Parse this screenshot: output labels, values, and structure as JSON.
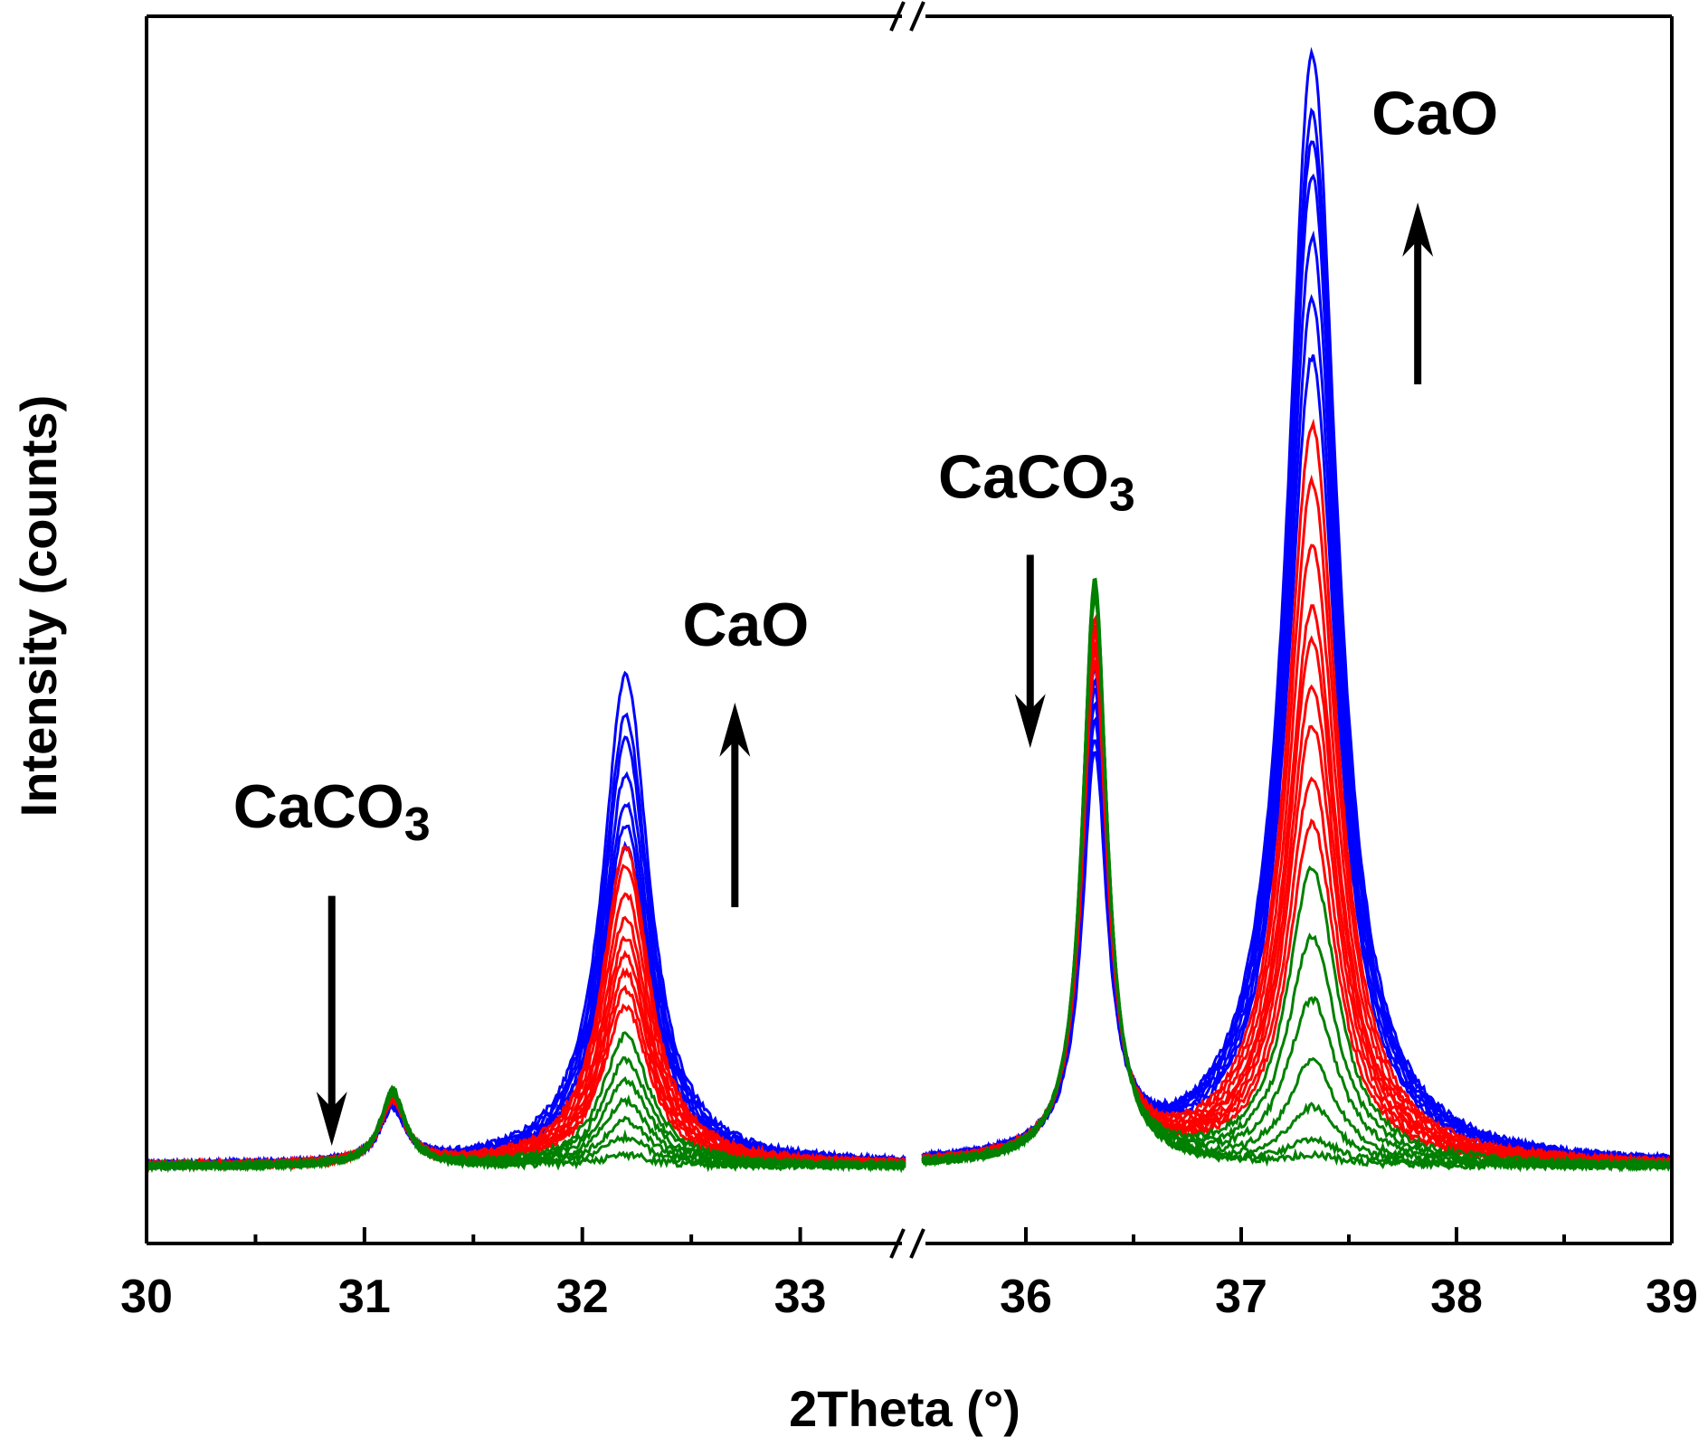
{
  "chart_data": {
    "type": "line",
    "xlabel": "2Theta (°)",
    "ylabel": "Intensity (counts)",
    "x_break": [
      33.5,
      35.5
    ],
    "xlim_left": [
      30,
      33.5
    ],
    "xlim_right": [
      35.5,
      39
    ],
    "ylim": [
      0,
      1000
    ],
    "xticks": [
      {
        "value": 30,
        "label": "30"
      },
      {
        "value": 31,
        "label": "31"
      },
      {
        "value": 32,
        "label": "32"
      },
      {
        "value": 33,
        "label": "33"
      },
      {
        "value": 36,
        "label": "36"
      },
      {
        "value": 37,
        "label": "37"
      },
      {
        "value": 38,
        "label": "38"
      },
      {
        "value": 39,
        "label": "39"
      }
    ],
    "y_tick_labels": false,
    "colors": {
      "blue": "#0000ff",
      "red": "#ff0000",
      "green": "#008000"
    },
    "peak_centers": {
      "caco3_31": 31.13,
      "cao_32": 32.2,
      "caco3_36": 36.32,
      "cao_37": 37.33
    },
    "baseline": 32,
    "series_groups": [
      {
        "color": "blue",
        "curves": [
          {
            "cao_32": 432,
            "caco3_31": 45,
            "caco3_36": 345,
            "cao_37": 977
          },
          {
            "cao_32": 395,
            "caco3_31": 46,
            "caco3_36": 360,
            "cao_37": 925
          },
          {
            "cao_32": 375,
            "caco3_31": 47,
            "caco3_36": 375,
            "cao_37": 900
          },
          {
            "cao_32": 345,
            "caco3_31": 48,
            "caco3_36": 390,
            "cao_37": 870
          },
          {
            "cao_32": 318,
            "caco3_31": 49,
            "caco3_36": 405,
            "cao_37": 815
          },
          {
            "cao_32": 300,
            "caco3_31": 50,
            "caco3_36": 415,
            "cao_37": 760
          },
          {
            "cao_32": 280,
            "caco3_31": 51,
            "caco3_36": 425,
            "cao_37": 710
          }
        ]
      },
      {
        "color": "red",
        "curves": [
          {
            "cao_32": 280,
            "caco3_31": 53,
            "caco3_36": 430,
            "cao_37": 650
          },
          {
            "cao_32": 265,
            "caco3_31": 54,
            "caco3_36": 435,
            "cao_37": 600
          },
          {
            "cao_32": 240,
            "caco3_31": 55,
            "caco3_36": 440,
            "cao_37": 545
          },
          {
            "cao_32": 218,
            "caco3_31": 56,
            "caco3_36": 445,
            "cao_37": 490
          },
          {
            "cao_32": 200,
            "caco3_31": 57,
            "caco3_36": 450,
            "cao_37": 460
          },
          {
            "cao_32": 185,
            "caco3_31": 58,
            "caco3_36": 455,
            "cao_37": 420
          },
          {
            "cao_32": 170,
            "caco3_31": 59,
            "caco3_36": 462,
            "cao_37": 385
          },
          {
            "cao_32": 155,
            "caco3_31": 60,
            "caco3_36": 470,
            "cao_37": 340
          },
          {
            "cao_32": 140,
            "caco3_31": 61,
            "caco3_36": 478,
            "cao_37": 300
          }
        ]
      },
      {
        "color": "green",
        "curves": [
          {
            "cao_32": 115,
            "caco3_31": 62,
            "caco3_36": 495,
            "cao_37": 260
          },
          {
            "cao_32": 93,
            "caco3_31": 63,
            "caco3_36": 500,
            "cao_37": 200
          },
          {
            "cao_32": 75,
            "caco3_31": 64,
            "caco3_36": 505,
            "cao_37": 145
          },
          {
            "cao_32": 57,
            "caco3_31": 65,
            "caco3_36": 508,
            "cao_37": 90
          },
          {
            "cao_32": 40,
            "caco3_31": 66,
            "caco3_36": 511,
            "cao_37": 50
          },
          {
            "cao_32": 25,
            "caco3_31": 67,
            "caco3_36": 514,
            "cao_37": 22
          },
          {
            "cao_32": 10,
            "caco3_31": 68,
            "caco3_36": 517,
            "cao_37": 8
          }
        ]
      }
    ],
    "annotations": [
      {
        "id": "caco3-left",
        "base": "CaCO",
        "sub": "3",
        "x": 30.85,
        "y": 330
      },
      {
        "id": "cao-mid",
        "base": "CaO",
        "sub": "",
        "x": 32.75,
        "y": 490
      },
      {
        "id": "caco3-right",
        "base": "CaCO",
        "sub": "3",
        "x": 36.05,
        "y": 620
      },
      {
        "id": "cao-right",
        "base": "CaO",
        "sub": "",
        "x": 37.9,
        "y": 940
      }
    ],
    "arrows": [
      {
        "id": "arrow-down-caco3-left",
        "direction": "down",
        "x": 30.85,
        "y_from": 270,
        "y_to": 50
      },
      {
        "id": "arrow-up-cao-mid",
        "direction": "up",
        "x": 32.7,
        "y_from": 260,
        "y_to": 440
      },
      {
        "id": "arrow-down-caco3-right",
        "direction": "down",
        "x": 36.02,
        "y_from": 570,
        "y_to": 400
      },
      {
        "id": "arrow-up-cao-right",
        "direction": "up",
        "x": 37.82,
        "y_from": 720,
        "y_to": 880
      }
    ]
  }
}
